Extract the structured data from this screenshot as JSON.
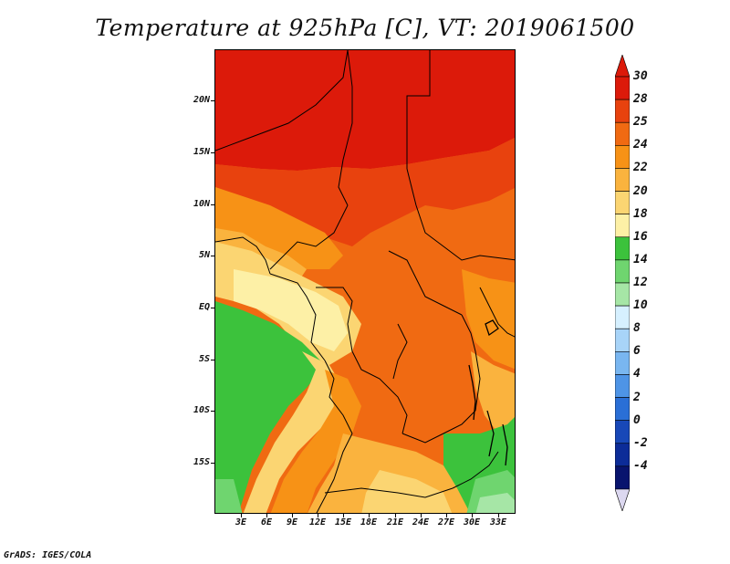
{
  "title": "Temperature at 925hPa [C], VT: 2019061500",
  "footer": "GrADS: IGES/COLA",
  "map": {
    "lat_labels": [
      "20N",
      "15N",
      "10N",
      "5N",
      "EQ",
      "5S",
      "10S",
      "15S"
    ],
    "lon_labels": [
      "3E",
      "6E",
      "9E",
      "12E",
      "15E",
      "18E",
      "21E",
      "24E",
      "27E",
      "30E",
      "33E"
    ],
    "variable": "Temperature",
    "level": "925hPa",
    "units": "C",
    "valid_time": "2019061500"
  },
  "colorbar": {
    "labels": [
      "30",
      "28",
      "25",
      "24",
      "22",
      "20",
      "18",
      "16",
      "14",
      "12",
      "10",
      "8",
      "6",
      "4",
      "2",
      "0",
      "-2",
      "-4"
    ],
    "colors": [
      "#dc1a0a",
      "#e8420e",
      "#f06a12",
      "#f79216",
      "#fab33e",
      "#fbd572",
      "#fdf0a6",
      "#3cc23c",
      "#6fd56f",
      "#a6e6a6",
      "#d6f0ff",
      "#a8d4f8",
      "#79b6f0",
      "#4e94e6",
      "#2a6fd6",
      "#1848b8",
      "#0c2c98",
      "#08146e"
    ],
    "top_color": "#dc1a0a",
    "bottom_color": "#dcd8f0"
  }
}
